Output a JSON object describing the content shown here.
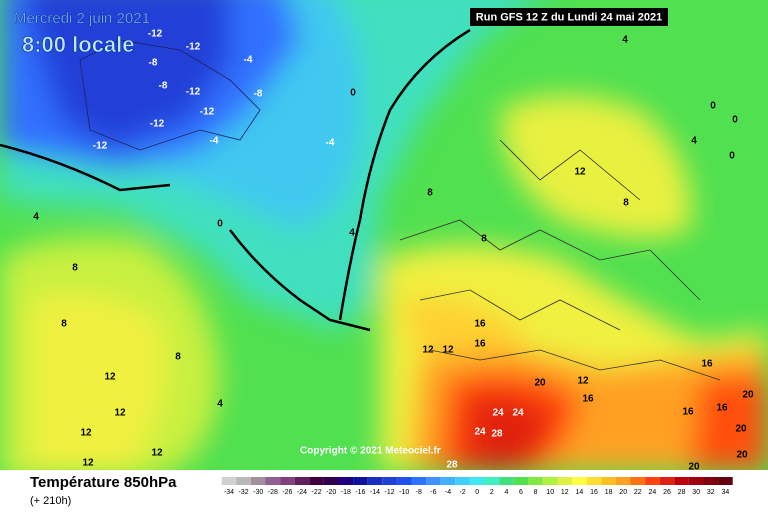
{
  "header": {
    "date": "Mercredi 2 juin 2021",
    "time": "8:00 locale",
    "run": "Run GFS 12 Z du Lundi 24 mai 2021"
  },
  "copyright": "Copyright © 2021 Meteociel.fr",
  "footer": {
    "title": "Température 850hPa",
    "lead": "(+ 210h)"
  },
  "legend": {
    "values": [
      -34,
      -32,
      -30,
      -28,
      -26,
      -24,
      -22,
      -20,
      -18,
      -16,
      -14,
      -12,
      -10,
      -8,
      -6,
      -4,
      -2,
      0,
      2,
      4,
      6,
      8,
      10,
      12,
      14,
      16,
      18,
      20,
      22,
      24,
      26,
      28,
      30,
      32,
      34
    ],
    "colors": [
      "#d0d0d0",
      "#b8b8b8",
      "#a090a0",
      "#906090",
      "#804080",
      "#602060",
      "#400040",
      "#300050",
      "#200080",
      "#1010a0",
      "#1830c0",
      "#2040d8",
      "#2050f0",
      "#3070ff",
      "#4090ff",
      "#40b0ff",
      "#40d0ff",
      "#40e8f0",
      "#40f0c0",
      "#40e080",
      "#50e050",
      "#80e840",
      "#b0f040",
      "#e0f040",
      "#ffff40",
      "#ffe030",
      "#ffc020",
      "#ffa020",
      "#ff7010",
      "#ff4010",
      "#e02010",
      "#c00010",
      "#a00010",
      "#800010",
      "#600010"
    ]
  },
  "contour_labels": [
    -12,
    -12,
    -8,
    -4,
    -8,
    -12,
    -8,
    -12,
    -12,
    -4,
    -12,
    0,
    -4,
    4,
    0,
    0,
    4,
    0,
    12,
    8,
    8,
    4,
    0,
    4,
    8,
    8,
    8,
    16,
    12,
    12,
    16,
    8,
    12,
    16,
    20,
    12,
    16,
    4,
    12,
    12,
    24,
    24,
    24,
    28,
    16,
    16,
    20,
    20,
    20,
    12,
    12,
    28,
    20
  ]
}
